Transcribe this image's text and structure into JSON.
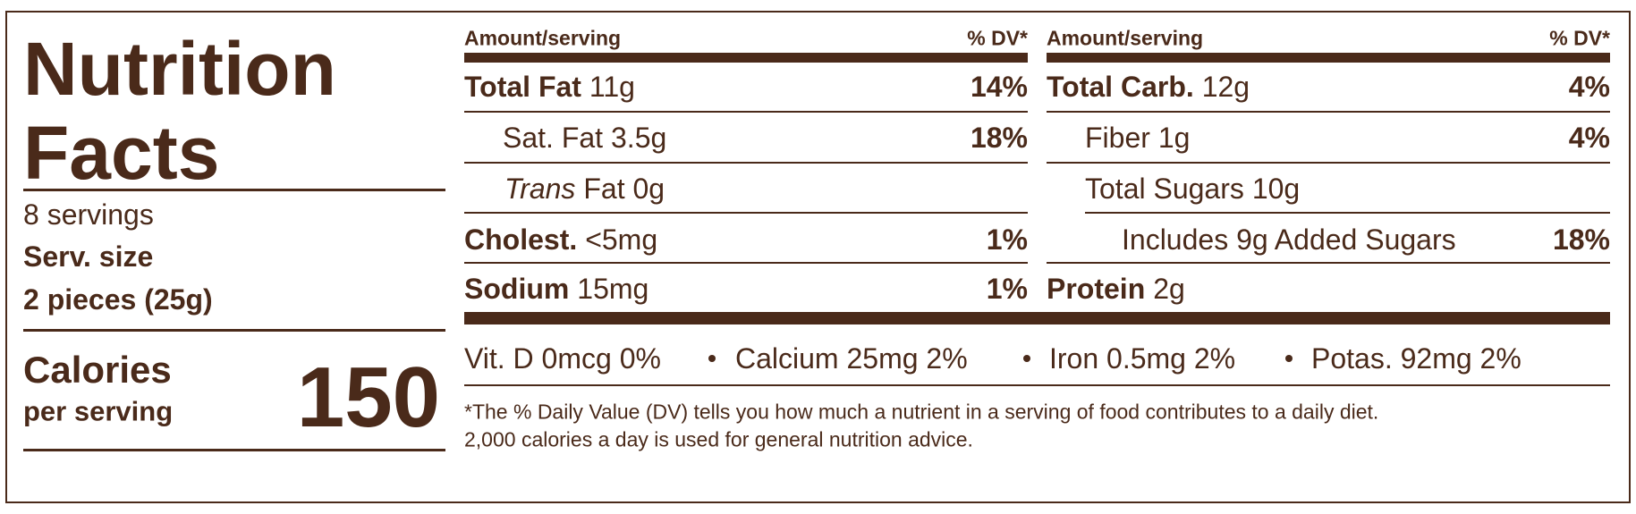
{
  "left": {
    "title": "Nutrition Facts",
    "servings": "8 servings",
    "serving_size_label": "Serv. size",
    "serving_size": "2 pieces (25g)",
    "calories_label": "Calories",
    "calories_sub": "per serving",
    "calories": 150
  },
  "columns": [
    {
      "header": {
        "amount": "Amount/serving",
        "dv": "% DV*"
      },
      "rows": [
        {
          "name": "Total Fat",
          "amount": "11g",
          "dv": "14%"
        },
        {
          "name": "Sat. Fat",
          "amount": "3.5g",
          "dv": "18%"
        },
        {
          "name": "Trans",
          "amount": "Fat 0g"
        },
        {
          "name": "Cholest.",
          "amount": "<5mg",
          "dv": "1%"
        },
        {
          "name": "Sodium",
          "amount": "15mg",
          "dv": "1%"
        }
      ]
    },
    {
      "header": {
        "amount": "Amount/serving",
        "dv": "% DV*"
      },
      "rows": [
        {
          "name": "Total Carb.",
          "amount": "12g",
          "dv": "4%"
        },
        {
          "name": "Fiber",
          "amount": "1g",
          "dv": "4%"
        },
        {
          "name": "Total Sugars",
          "amount": "10g"
        },
        {
          "name": "Includes 9g Added Sugars",
          "dv": "18%"
        },
        {
          "name": "Protein",
          "amount": "2g"
        }
      ]
    }
  ],
  "vitamins": [
    "Vit. D 0mcg 0%",
    "Calcium 25mg 2%",
    "Iron 0.5mg 2%",
    "Potas. 92mg 2%"
  ],
  "footnote": [
    "*The % Daily Value (DV) tells you how much a nutrient in a serving of food contributes to a daily diet.",
    "2,000 calories a day is used for general nutrition advice."
  ]
}
